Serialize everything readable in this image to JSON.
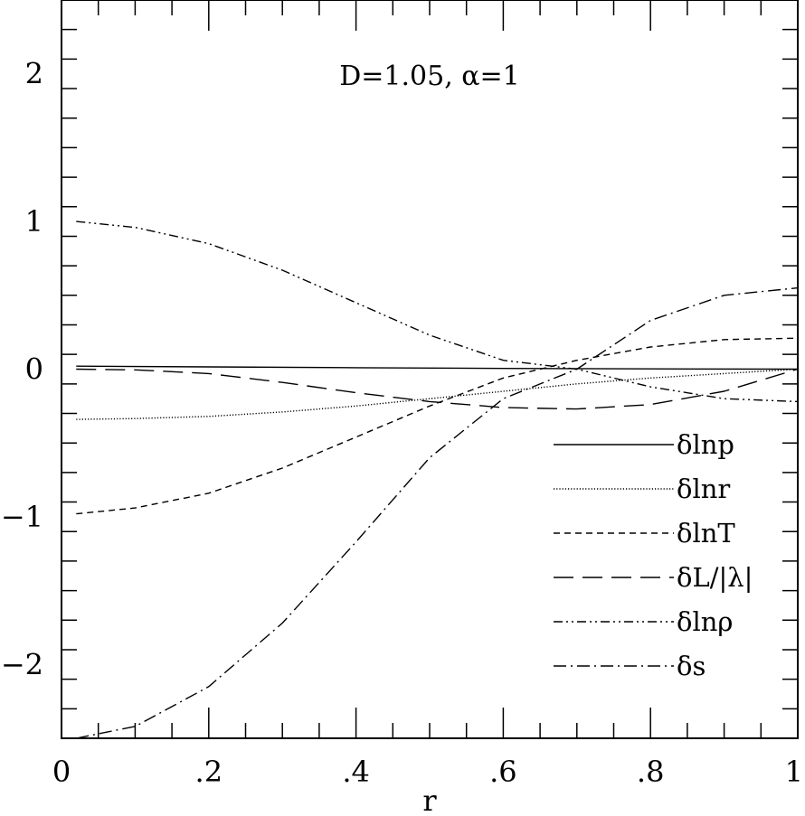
{
  "chart_data": {
    "type": "line",
    "xlabel": "r",
    "xlim": [
      0,
      1
    ],
    "ylim": [
      -2.5,
      2.5
    ],
    "x_ticks": [
      0,
      0.2,
      0.4,
      0.6,
      0.8,
      1
    ],
    "x_tick_labels": [
      "0",
      ".2",
      ".4",
      ".6",
      ".8",
      "1"
    ],
    "y_ticks": [
      -2,
      -1,
      0,
      1,
      2
    ],
    "y_tick_labels": [
      "−2",
      "−1",
      "0",
      "1",
      "2"
    ],
    "annotation": "D=1.05,  α=1",
    "legend_placement": "bottom-right",
    "series": [
      {
        "name": "δlnp",
        "dash": "solid",
        "x": [
          0.02,
          0.2,
          0.4,
          0.6,
          0.8,
          1.0
        ],
        "y": [
          0.02,
          0.015,
          0.01,
          0.005,
          0.002,
          0.0
        ]
      },
      {
        "name": "δlnr",
        "dash": "dotted",
        "x": [
          0.02,
          0.1,
          0.2,
          0.3,
          0.4,
          0.5,
          0.6,
          0.7,
          0.8,
          0.9,
          1.0
        ],
        "y": [
          -0.34,
          -0.335,
          -0.32,
          -0.29,
          -0.25,
          -0.2,
          -0.15,
          -0.1,
          -0.06,
          -0.03,
          0.0
        ]
      },
      {
        "name": "δlnT",
        "dash": "short-dash",
        "x": [
          0.02,
          0.1,
          0.2,
          0.3,
          0.4,
          0.5,
          0.6,
          0.7,
          0.8,
          0.9,
          1.0
        ],
        "y": [
          -0.98,
          -0.94,
          -0.84,
          -0.67,
          -0.46,
          -0.25,
          -0.06,
          0.06,
          0.15,
          0.2,
          0.21
        ]
      },
      {
        "name": "δL/|λ|",
        "dash": "long-dash",
        "x": [
          0.02,
          0.1,
          0.2,
          0.3,
          0.4,
          0.5,
          0.6,
          0.7,
          0.8,
          0.9,
          1.0
        ],
        "y": [
          0.0,
          -0.005,
          -0.03,
          -0.09,
          -0.16,
          -0.22,
          -0.26,
          -0.27,
          -0.24,
          -0.15,
          0.0
        ]
      },
      {
        "name": "δlnρ",
        "dash": "dash-dot-dot",
        "x": [
          0.02,
          0.1,
          0.2,
          0.3,
          0.4,
          0.5,
          0.6,
          0.7,
          0.8,
          0.9,
          1.0
        ],
        "y": [
          1.0,
          0.96,
          0.85,
          0.67,
          0.45,
          0.23,
          0.06,
          0.0,
          -0.12,
          -0.2,
          -0.22
        ]
      },
      {
        "name": "δs",
        "dash": "dash-dot",
        "x": [
          0.02,
          0.1,
          0.2,
          0.3,
          0.4,
          0.5,
          0.6,
          0.7,
          0.8,
          0.9,
          1.0
        ],
        "y": [
          -2.5,
          -2.42,
          -2.15,
          -1.72,
          -1.17,
          -0.6,
          -0.2,
          0.0,
          0.33,
          0.5,
          0.55
        ]
      }
    ]
  }
}
